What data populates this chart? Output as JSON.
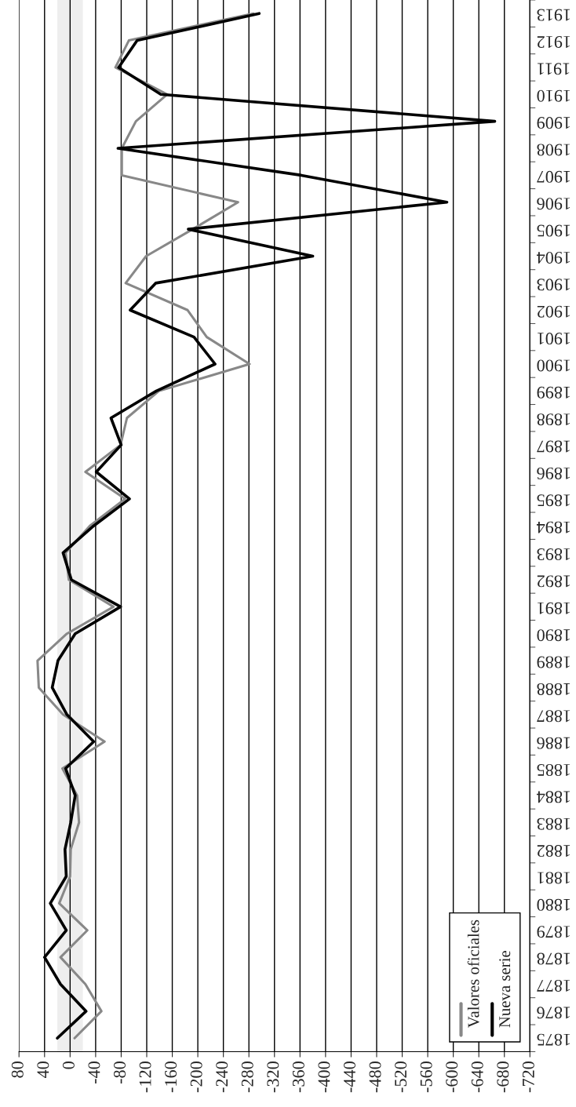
{
  "chart_data": {
    "type": "line",
    "orientation": "horizontal",
    "categories": [
      "1913",
      "1912",
      "1911",
      "1910",
      "1909",
      "1908",
      "1907",
      "1906",
      "1905",
      "1904",
      "1903",
      "1902",
      "1901",
      "1900",
      "1899",
      "1898",
      "1897",
      "1896",
      "1895",
      "1894",
      "1893",
      "1892",
      "1891",
      "1890",
      "1889",
      "1888",
      "1887",
      "1886",
      "1885",
      "1884",
      "1883",
      "1882",
      "1881",
      "1880",
      "1879",
      "1878",
      "1877",
      "1876",
      "1875"
    ],
    "series": [
      {
        "name": "Valores oficiales",
        "color": "#888888",
        "values": [
          -287,
          -92,
          -71,
          -152,
          -103,
          -81,
          -81,
          -263,
          -192,
          -119,
          -87,
          -184,
          -214,
          -281,
          -139,
          -89,
          -79,
          -24,
          -86,
          -31,
          7,
          2,
          -68,
          5,
          51,
          49,
          11,
          -54,
          12,
          -11,
          -14,
          -1,
          0,
          17,
          -27,
          15,
          -24,
          -49,
          -7
        ]
      },
      {
        "name": "Nueva serie",
        "color": "#000000",
        "values": [
          -296,
          -105,
          -76,
          -142,
          -665,
          -75,
          -362,
          -590,
          -185,
          -380,
          -134,
          -94,
          -194,
          -227,
          -135,
          -64,
          -80,
          -41,
          -93,
          -37,
          11,
          -2,
          -79,
          -8,
          19,
          28,
          5,
          -37,
          7,
          -8,
          -1,
          8,
          6,
          31,
          6,
          40,
          15,
          -25,
          20
        ]
      }
    ],
    "xlim": [
      80,
      -720
    ],
    "xticks": [
      80,
      40,
      0,
      -40,
      -80,
      -120,
      -160,
      -200,
      -240,
      -280,
      -320,
      -360,
      -400,
      -440,
      -480,
      -520,
      -560,
      -600,
      -640,
      -680,
      -720
    ],
    "bands": [
      {
        "axis": "x",
        "from": 20,
        "to": -20,
        "color": "#eeeeee"
      }
    ],
    "grid": "x",
    "legend": "bottom right",
    "marker": "none",
    "line_style": "solid"
  }
}
